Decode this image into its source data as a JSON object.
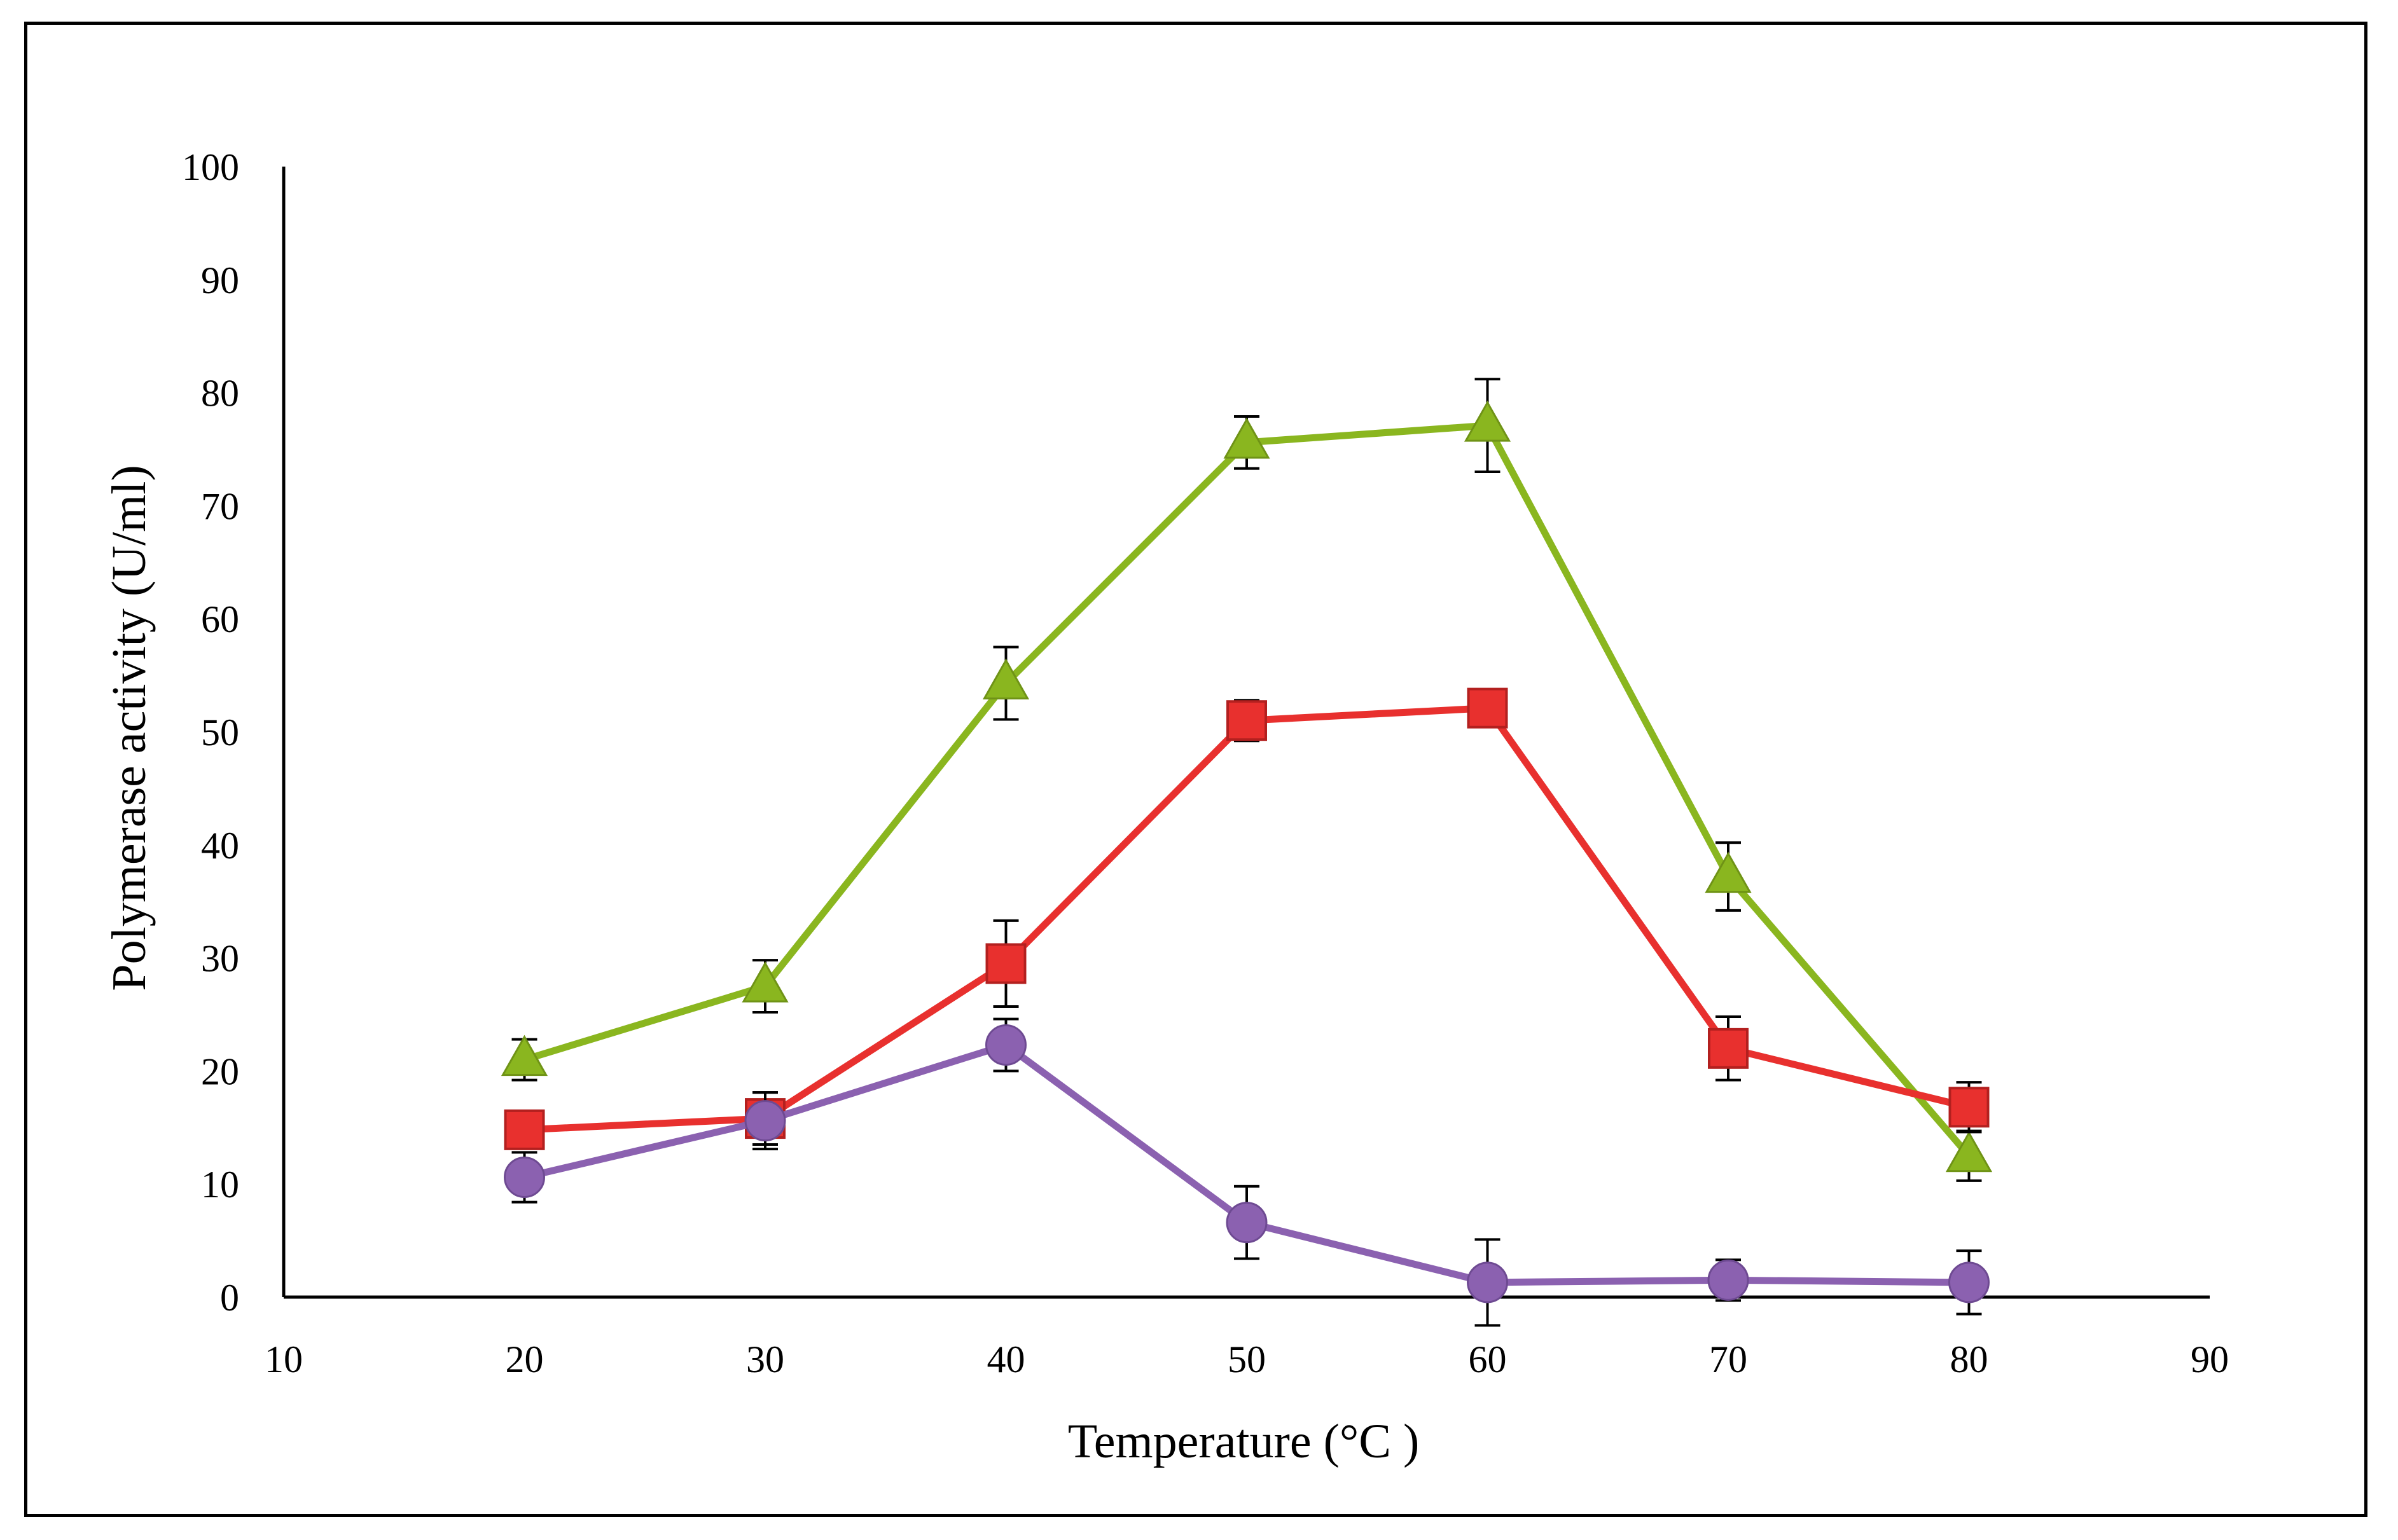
{
  "chart_data": {
    "type": "line",
    "title": "",
    "xlabel": "Temperature (°C )",
    "ylabel": "Polymerase activity (U/ml)",
    "xlim": [
      10,
      90
    ],
    "ylim": [
      0,
      100
    ],
    "x_ticks": [
      10,
      20,
      30,
      40,
      50,
      60,
      70,
      80,
      90
    ],
    "y_ticks": [
      0,
      10,
      20,
      30,
      40,
      50,
      60,
      70,
      80,
      90,
      100
    ],
    "x_tick_labels": [
      "10",
      "20",
      "30",
      "40",
      "50",
      "60",
      "70",
      "80",
      "90"
    ],
    "y_tick_labels": [
      "0",
      "10",
      "20",
      "30",
      "40",
      "50",
      "60",
      "70",
      "80",
      "90",
      "100"
    ],
    "legend": "none",
    "x": [
      20,
      30,
      40,
      50,
      60,
      70,
      80
    ],
    "series": [
      {
        "name": "triangle series",
        "marker": "triangle",
        "color": "#8ab61f",
        "values": [
          21,
          27.5,
          54.3,
          75.6,
          77.1,
          37.2,
          12.5
        ],
        "errors": [
          1.8,
          2.3,
          3.2,
          2.3,
          4.1,
          3,
          2.2
        ]
      },
      {
        "name": "square series",
        "marker": "square",
        "color": "#e8302e",
        "values": [
          14.8,
          15.8,
          29.5,
          51,
          52.1,
          22,
          16.8
        ],
        "errors": [
          0,
          2.3,
          3.8,
          1.8,
          0,
          2.8,
          2.2
        ]
      },
      {
        "name": "circle series",
        "marker": "circle",
        "color": "#8b61b0",
        "values": [
          10.6,
          15.6,
          22.3,
          6.6,
          1.3,
          1.5,
          1.3
        ],
        "errors": [
          2.2,
          2.5,
          2.3,
          3.2,
          3.8,
          1.8,
          2.8
        ]
      }
    ]
  }
}
